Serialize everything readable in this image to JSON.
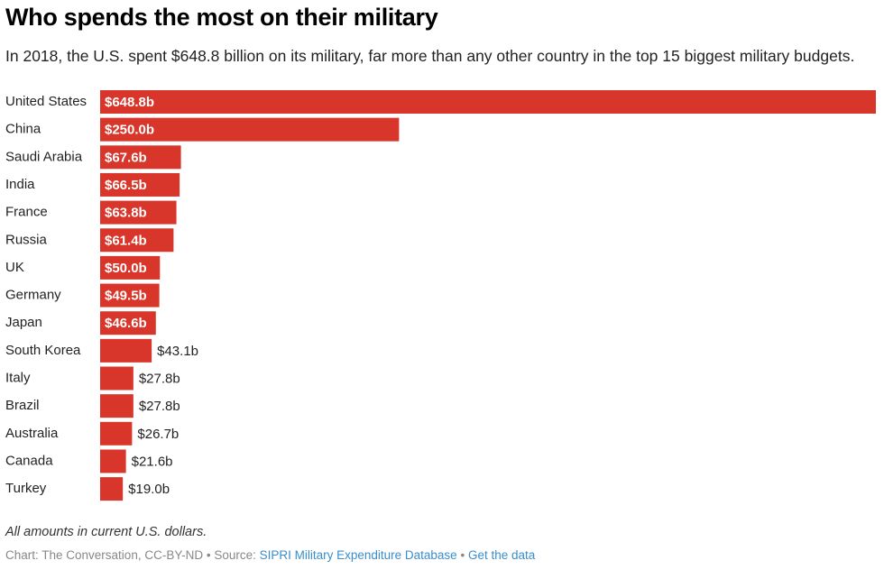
{
  "colors": {
    "bar": "#d8362a",
    "link": "#3a8ecb"
  },
  "chart_data": {
    "type": "bar",
    "orientation": "horizontal",
    "title": "Who spends the most on their military",
    "subtitle": "In 2018, the U.S. spent $648.8 billion on its military, far more than any other country in the top 15 biggest military budgets.",
    "xlabel": "",
    "ylabel": "",
    "unit": "billion USD",
    "grid": false,
    "legend": "none",
    "xlim": [
      0,
      648.8
    ],
    "categories": [
      "United States",
      "China",
      "Saudi Arabia",
      "India",
      "France",
      "Russia",
      "UK",
      "Germany",
      "Japan",
      "South Korea",
      "Italy",
      "Brazil",
      "Australia",
      "Canada",
      "Turkey"
    ],
    "values": [
      648.8,
      250.0,
      67.6,
      66.5,
      63.8,
      61.4,
      50.0,
      49.5,
      46.6,
      43.1,
      27.8,
      27.8,
      26.7,
      21.6,
      19.0
    ],
    "value_labels": [
      "$648.8b",
      "$250.0b",
      "$67.6b",
      "$66.5b",
      "$63.8b",
      "$61.4b",
      "$50.0b",
      "$49.5b",
      "$46.6b",
      "$43.1b",
      "$27.8b",
      "$27.8b",
      "$26.7b",
      "$21.6b",
      "$19.0b"
    ],
    "label_inside_threshold": 45
  },
  "footer": {
    "note": "All amounts in current U.S. dollars.",
    "credit_prefix": "Chart: The Conversation, CC-BY-ND • Source: ",
    "source_link": "SIPRI Military Expenditure Database",
    "separator": " • ",
    "data_link": "Get the data"
  }
}
